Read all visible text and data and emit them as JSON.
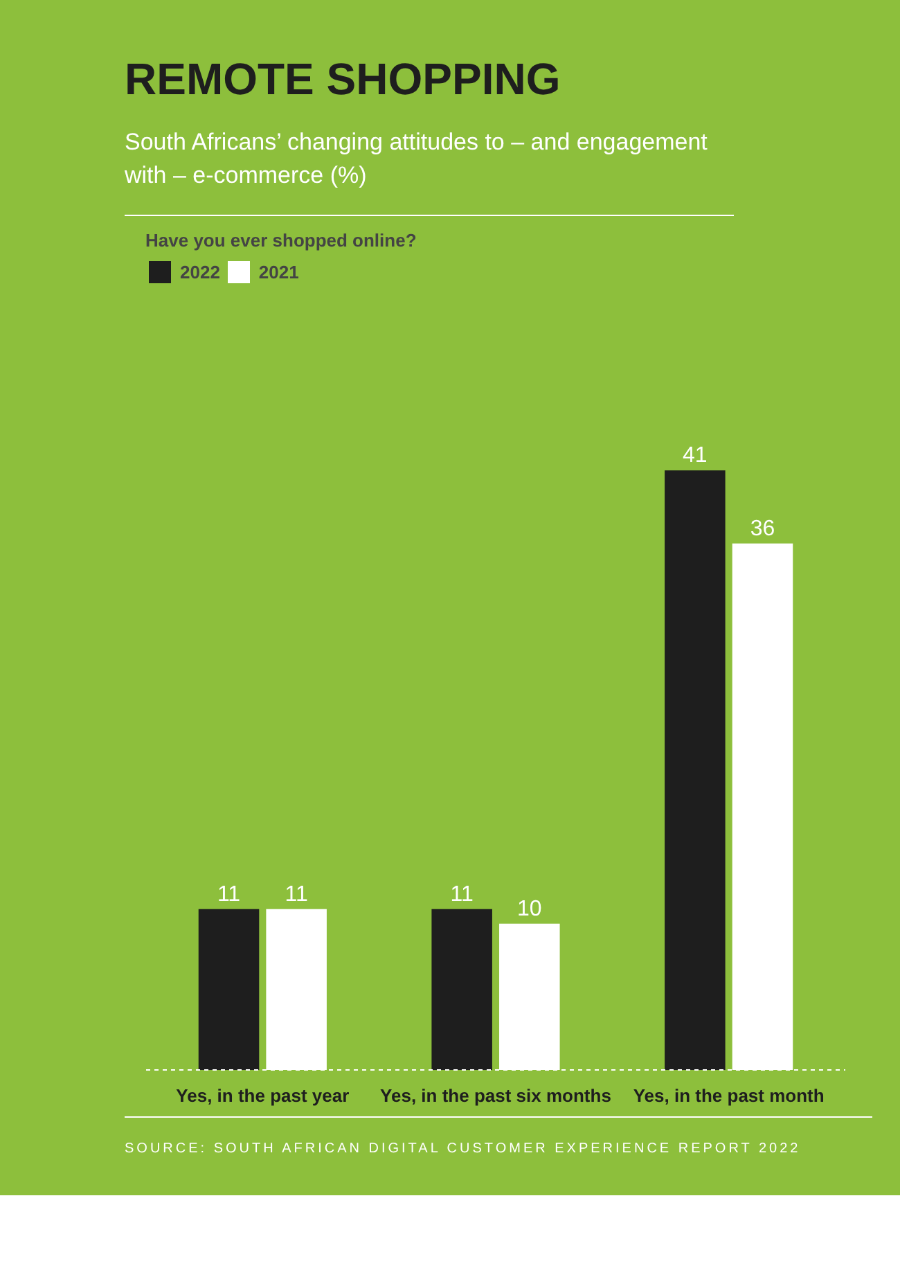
{
  "chart_data": {
    "type": "bar",
    "title": "REMOTE SHOPPING",
    "subtitle": "South Africans’ changing attitudes to – and engagement with – e-commerce (%)",
    "legend_title": "Have you ever shopped online?",
    "categories": [
      "Yes, in the past year",
      "Yes, in the past six months",
      "Yes, in the past month"
    ],
    "series": [
      {
        "name": "2022",
        "color": "#1e1e1e",
        "values": [
          11,
          11,
          41
        ]
      },
      {
        "name": "2021",
        "color": "#ffffff",
        "values": [
          11,
          10,
          36
        ]
      }
    ],
    "data_labels": true,
    "legend": "top left",
    "grid": false,
    "annotations": [
      "SOURCE: SOUTH AFRICAN DIGITAL CUSTOMER EXPERIENCE REPORT 2022"
    ]
  }
}
